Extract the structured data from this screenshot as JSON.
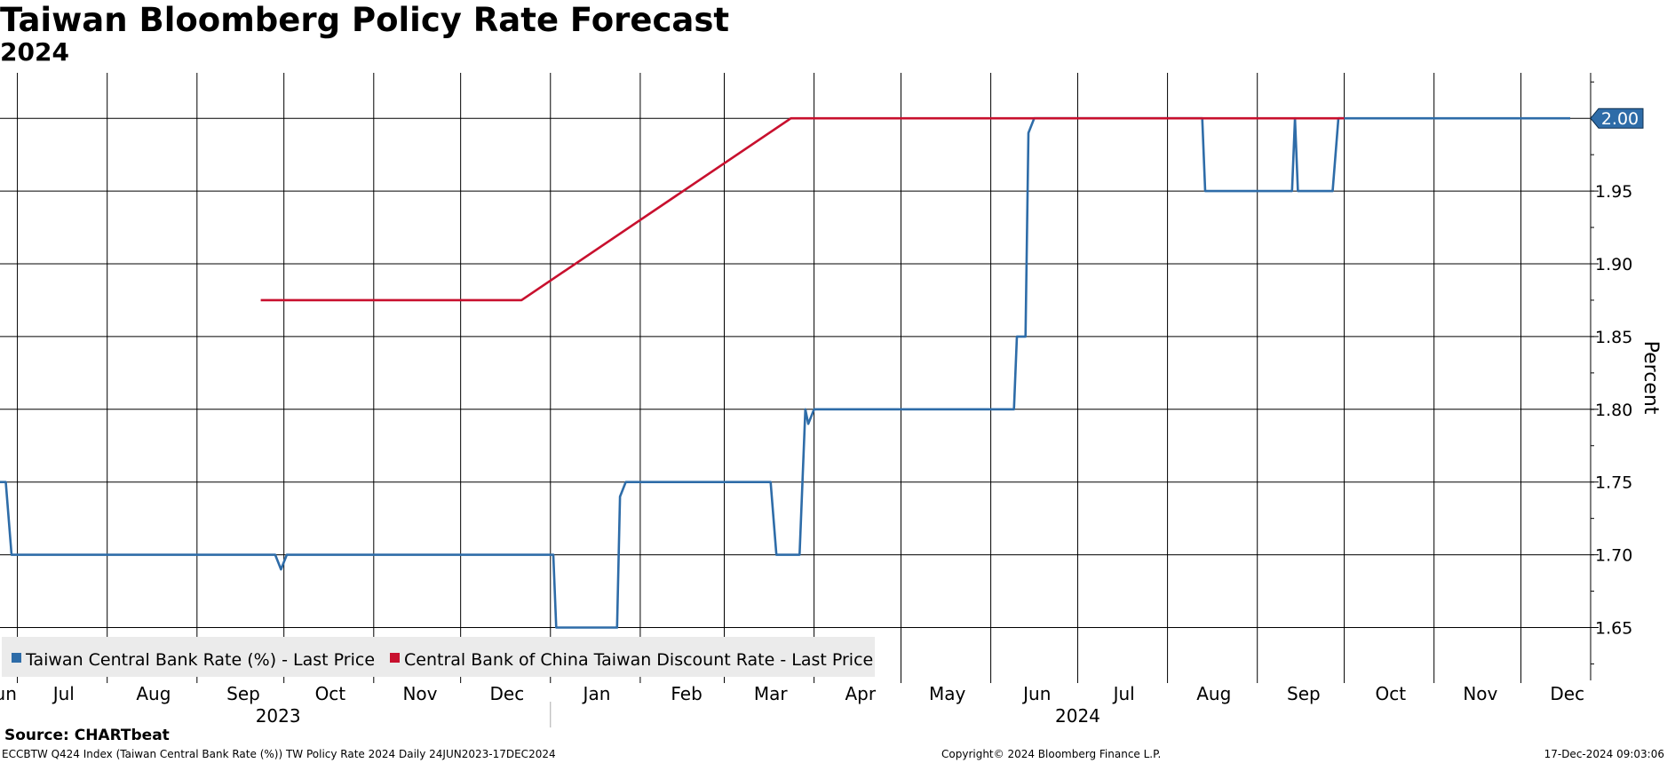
{
  "title": "Taiwan Bloomberg Policy Rate Forecast",
  "subtitle": "2024",
  "footer": {
    "source": "Source: CHARTbeat",
    "description": "ECCBTW Q424 Index (Taiwan Central Bank Rate (%)) TW Policy Rate 2024  Daily 24JUN2023-17DEC2024",
    "copyright": "Copyright© 2024 Bloomberg Finance L.P.",
    "timestamp": "17-Dec-2024 09:03:06"
  },
  "chart_data": {
    "type": "line",
    "title": "Taiwan Bloomberg Policy Rate Forecast",
    "subtitle": "2024",
    "xlabel": "",
    "ylabel": "Percent",
    "x_range": [
      "2023-06-24",
      "2024-12-17"
    ],
    "ylim": [
      1.62,
      2.03
    ],
    "y_ticks": [
      "1.65",
      "1.70",
      "1.75",
      "1.80",
      "1.85",
      "1.90",
      "1.95"
    ],
    "last_value_label": "2.00",
    "grid": true,
    "legend_position": "bottom-left",
    "x_ticks": [
      {
        "label": "Jun",
        "date": "2023-06-25"
      },
      {
        "label": "Jul",
        "date": "2023-07-16"
      },
      {
        "label": "Aug",
        "date": "2023-08-16"
      },
      {
        "label": "Sep",
        "date": "2023-09-16"
      },
      {
        "label": "Oct",
        "date": "2023-10-16"
      },
      {
        "label": "Nov",
        "date": "2023-11-16"
      },
      {
        "label": "Dec",
        "date": "2023-12-16"
      },
      {
        "label": "Jan",
        "date": "2024-01-16"
      },
      {
        "label": "Feb",
        "date": "2024-02-16"
      },
      {
        "label": "Mar",
        "date": "2024-03-16"
      },
      {
        "label": "Apr",
        "date": "2024-04-16"
      },
      {
        "label": "May",
        "date": "2024-05-16"
      },
      {
        "label": "Jun",
        "date": "2024-06-16"
      },
      {
        "label": "Jul",
        "date": "2024-07-16"
      },
      {
        "label": "Aug",
        "date": "2024-08-16"
      },
      {
        "label": "Sep",
        "date": "2024-09-16"
      },
      {
        "label": "Oct",
        "date": "2024-10-16"
      },
      {
        "label": "Nov",
        "date": "2024-11-16"
      },
      {
        "label": "Dec",
        "date": "2024-12-16"
      }
    ],
    "grid_dates": [
      "2023-06-30",
      "2023-07-31",
      "2023-08-31",
      "2023-09-30",
      "2023-10-31",
      "2023-11-30",
      "2023-12-31",
      "2024-01-31",
      "2024-02-29",
      "2024-03-31",
      "2024-04-30",
      "2024-05-31",
      "2024-06-30",
      "2024-07-31",
      "2024-08-31",
      "2024-09-30",
      "2024-10-31",
      "2024-11-30"
    ],
    "year_labels": [
      {
        "label": "2023",
        "date": "2023-09-28"
      },
      {
        "label": "2024",
        "date": "2024-06-30"
      }
    ],
    "year_divider_date": "2023-12-31",
    "series": [
      {
        "name": "Taiwan Central Bank Rate (%) - Last Price",
        "color": "#2e6ca8",
        "points": [
          [
            "2023-06-24",
            1.75
          ],
          [
            "2023-06-26",
            1.75
          ],
          [
            "2023-06-28",
            1.7
          ],
          [
            "2023-09-27",
            1.7
          ],
          [
            "2023-09-29",
            1.69
          ],
          [
            "2023-10-01",
            1.7
          ],
          [
            "2024-01-01",
            1.7
          ],
          [
            "2024-01-02",
            1.65
          ],
          [
            "2024-01-23",
            1.65
          ],
          [
            "2024-01-24",
            1.74
          ],
          [
            "2024-01-26",
            1.75
          ],
          [
            "2024-03-16",
            1.75
          ],
          [
            "2024-03-18",
            1.7
          ],
          [
            "2024-03-26",
            1.7
          ],
          [
            "2024-03-28",
            1.8
          ],
          [
            "2024-03-29",
            1.79
          ],
          [
            "2024-03-31",
            1.8
          ],
          [
            "2024-06-08",
            1.8
          ],
          [
            "2024-06-09",
            1.85
          ],
          [
            "2024-06-12",
            1.85
          ],
          [
            "2024-06-13",
            1.99
          ],
          [
            "2024-06-15",
            2.0
          ],
          [
            "2024-08-12",
            2.0
          ],
          [
            "2024-08-13",
            1.95
          ],
          [
            "2024-09-12",
            1.95
          ],
          [
            "2024-09-13",
            2.0
          ],
          [
            "2024-09-14",
            1.95
          ],
          [
            "2024-09-26",
            1.95
          ],
          [
            "2024-09-28",
            2.0
          ],
          [
            "2024-12-17",
            2.0
          ]
        ]
      },
      {
        "name": "Central Bank of China Taiwan Discount Rate - Last Price",
        "color": "#c8102e",
        "points": [
          [
            "2023-09-22",
            1.875
          ],
          [
            "2023-12-21",
            1.875
          ],
          [
            "2024-03-23",
            2.0
          ],
          [
            "2024-09-30",
            2.0
          ]
        ]
      }
    ]
  }
}
